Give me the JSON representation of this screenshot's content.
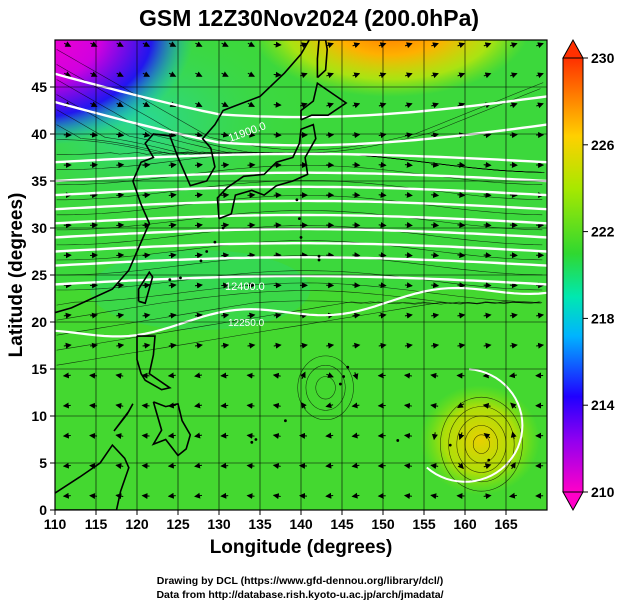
{
  "title": "GSM 12Z30Nov2024 (200.0hPa)",
  "x_axis": {
    "label": "Longitude (degrees)",
    "range": [
      110,
      170
    ],
    "ticks": [
      "110",
      "115",
      "120",
      "125",
      "130",
      "135",
      "140",
      "145",
      "150",
      "155",
      "160",
      "165"
    ]
  },
  "y_axis": {
    "label": "Latitude (degrees)",
    "range": [
      0,
      50
    ],
    "ticks": [
      "0",
      "5",
      "10",
      "15",
      "20",
      "25",
      "30",
      "35",
      "40",
      "45"
    ]
  },
  "colorbar": {
    "range": [
      210,
      230
    ],
    "ticks": [
      "210",
      "214",
      "218",
      "222",
      "226",
      "230"
    ],
    "colors": [
      "#ff00c8",
      "#2000ff",
      "#00b4ff",
      "#00e8b0",
      "#30d830",
      "#a8e800",
      "#ffd000",
      "#ff3000"
    ]
  },
  "contour_labels": [
    "11900.0",
    "12400.0",
    "12250.0"
  ],
  "credits": {
    "line1": "Drawing by DCL (https://www.gfd-dennou.org/library/dcl/)",
    "line2": "Data from http://database.rish.kyoto-u.ac.jp/arch/jmadata/"
  }
}
